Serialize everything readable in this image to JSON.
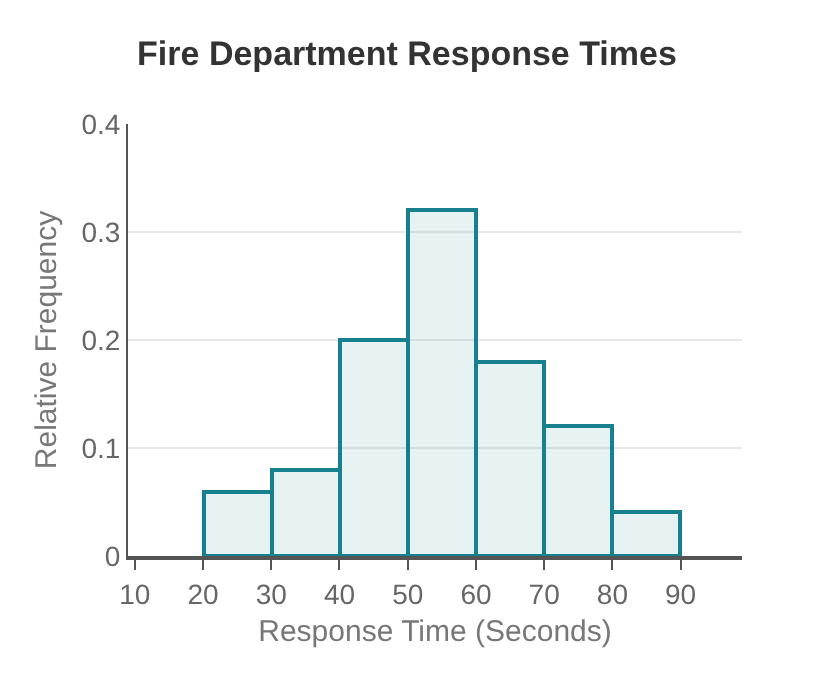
{
  "chart_data": {
    "type": "histogram",
    "title": "Fire Department Response Times",
    "xlabel": "Response Time (Seconds)",
    "ylabel": "Relative Frequency",
    "bins": [
      20,
      30,
      40,
      50,
      60,
      70,
      80,
      90
    ],
    "values": [
      0.06,
      0.08,
      0.2,
      0.32,
      0.18,
      0.12,
      0.04
    ],
    "color": "#16808e",
    "xlim": [
      9,
      99
    ],
    "xticks": [
      10,
      20,
      30,
      40,
      50,
      60,
      70,
      80,
      90
    ],
    "ylim": [
      0,
      0.4
    ],
    "yticks": [
      0,
      0.1,
      0.2,
      0.3,
      0.4
    ],
    "grid": "y"
  }
}
